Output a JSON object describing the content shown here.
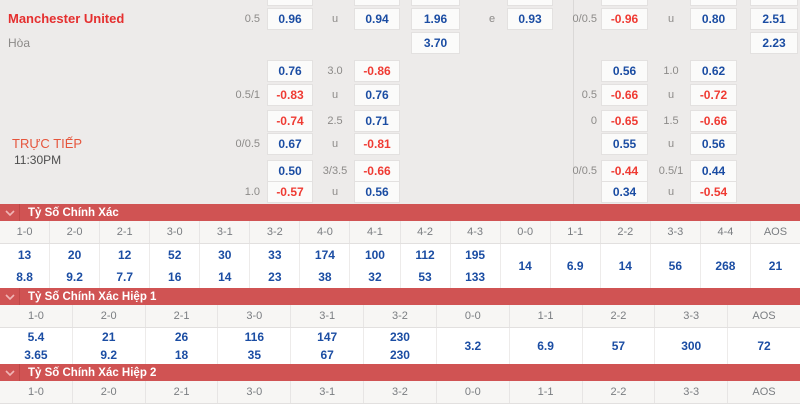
{
  "match": {
    "home_team": "Manchester United",
    "draw_label": "Hòa",
    "live_label": "TRỰC TIẾP",
    "kickoff_time": "11:30PM"
  },
  "colors": {
    "odds_positive": "#1b4da3",
    "odds_negative": "#ef3b33",
    "team_red": "#e52f2f",
    "section_bar_red": "#d05353",
    "panel_background": "#edebea"
  },
  "odds_cells": [
    {
      "row": 0,
      "col": "LB1",
      "type": "box",
      "text": "",
      "color": "blue"
    },
    {
      "row": 0,
      "col": "LB2",
      "type": "box",
      "text": "",
      "color": "blue"
    },
    {
      "row": 0,
      "col": "LB3",
      "type": "box",
      "text": "",
      "color": "blue"
    },
    {
      "row": 0,
      "col": "LB4",
      "type": "box",
      "text": "",
      "color": "blue"
    },
    {
      "row": 0,
      "col": "RB1",
      "type": "box",
      "text": "",
      "color": "blue"
    },
    {
      "row": 0,
      "col": "RB2",
      "type": "box",
      "text": "",
      "color": "blue"
    },
    {
      "row": 0,
      "col": "RB3",
      "type": "box",
      "text": "",
      "color": "blue"
    },
    {
      "row": 1,
      "col": "L1",
      "type": "label",
      "text": "0.5"
    },
    {
      "row": 1,
      "col": "LB1",
      "type": "box",
      "text": "0.96",
      "color": "blue"
    },
    {
      "row": 1,
      "col": "L2",
      "type": "label",
      "text": "u"
    },
    {
      "row": 1,
      "col": "LB2",
      "type": "box",
      "text": "0.94",
      "color": "blue"
    },
    {
      "row": 1,
      "col": "LB3",
      "type": "box",
      "text": "1.96",
      "color": "blue"
    },
    {
      "row": 1,
      "col": "L3",
      "type": "label",
      "text": "e"
    },
    {
      "row": 1,
      "col": "LB4",
      "type": "box",
      "text": "0.93",
      "color": "blue"
    },
    {
      "row": 1,
      "col": "R1",
      "type": "label",
      "text": "0/0.5"
    },
    {
      "row": 1,
      "col": "RB1",
      "type": "box",
      "text": "-0.96",
      "color": "red"
    },
    {
      "row": 1,
      "col": "R2",
      "type": "label",
      "text": "u"
    },
    {
      "row": 1,
      "col": "RB2",
      "type": "box",
      "text": "0.80",
      "color": "blue"
    },
    {
      "row": 1,
      "col": "RB3",
      "type": "box",
      "text": "2.51",
      "color": "blue"
    },
    {
      "row": 2,
      "col": "LB3",
      "type": "box",
      "text": "3.70",
      "color": "blue"
    },
    {
      "row": 2,
      "col": "RB3",
      "type": "box",
      "text": "2.23",
      "color": "blue"
    },
    {
      "row": 3,
      "col": "LB1",
      "type": "box",
      "text": "0.76",
      "color": "blue"
    },
    {
      "row": 3,
      "col": "L2",
      "type": "label",
      "text": "3.0"
    },
    {
      "row": 3,
      "col": "LB2",
      "type": "box",
      "text": "-0.86",
      "color": "red"
    },
    {
      "row": 3,
      "col": "RB1",
      "type": "box",
      "text": "0.56",
      "color": "blue"
    },
    {
      "row": 3,
      "col": "R2",
      "type": "label",
      "text": "1.0"
    },
    {
      "row": 3,
      "col": "RB2",
      "type": "box",
      "text": "0.62",
      "color": "blue"
    },
    {
      "row": 4,
      "col": "L1",
      "type": "label",
      "text": "0.5/1"
    },
    {
      "row": 4,
      "col": "LB1",
      "type": "box",
      "text": "-0.83",
      "color": "red"
    },
    {
      "row": 4,
      "col": "L2",
      "type": "label",
      "text": "u"
    },
    {
      "row": 4,
      "col": "LB2",
      "type": "box",
      "text": "0.76",
      "color": "blue"
    },
    {
      "row": 4,
      "col": "R1",
      "type": "label",
      "text": "0.5"
    },
    {
      "row": 4,
      "col": "RB1",
      "type": "box",
      "text": "-0.66",
      "color": "red"
    },
    {
      "row": 4,
      "col": "R2",
      "type": "label",
      "text": "u"
    },
    {
      "row": 4,
      "col": "RB2",
      "type": "box",
      "text": "-0.72",
      "color": "red"
    },
    {
      "row": 5,
      "col": "LB1",
      "type": "box",
      "text": "-0.74",
      "color": "red"
    },
    {
      "row": 5,
      "col": "L2",
      "type": "label",
      "text": "2.5"
    },
    {
      "row": 5,
      "col": "LB2",
      "type": "box",
      "text": "0.71",
      "color": "blue"
    },
    {
      "row": 5,
      "col": "R1",
      "type": "label",
      "text": "0"
    },
    {
      "row": 5,
      "col": "RB1",
      "type": "box",
      "text": "-0.65",
      "color": "red"
    },
    {
      "row": 5,
      "col": "R2",
      "type": "label",
      "text": "1.5"
    },
    {
      "row": 5,
      "col": "RB2",
      "type": "box",
      "text": "-0.66",
      "color": "red"
    },
    {
      "row": 6,
      "col": "L1",
      "type": "label",
      "text": "0/0.5"
    },
    {
      "row": 6,
      "col": "LB1",
      "type": "box",
      "text": "0.67",
      "color": "blue"
    },
    {
      "row": 6,
      "col": "L2",
      "type": "label",
      "text": "u"
    },
    {
      "row": 6,
      "col": "LB2",
      "type": "box",
      "text": "-0.81",
      "color": "red"
    },
    {
      "row": 6,
      "col": "RB1",
      "type": "box",
      "text": "0.55",
      "color": "blue"
    },
    {
      "row": 6,
      "col": "R2",
      "type": "label",
      "text": "u"
    },
    {
      "row": 6,
      "col": "RB2",
      "type": "box",
      "text": "0.56",
      "color": "blue"
    },
    {
      "row": 7,
      "col": "LB1",
      "type": "box",
      "text": "0.50",
      "color": "blue"
    },
    {
      "row": 7,
      "col": "L2",
      "type": "label",
      "text": "3/3.5"
    },
    {
      "row": 7,
      "col": "LB2",
      "type": "box",
      "text": "-0.66",
      "color": "red"
    },
    {
      "row": 7,
      "col": "R1",
      "type": "label",
      "text": "0/0.5"
    },
    {
      "row": 7,
      "col": "RB1",
      "type": "box",
      "text": "-0.44",
      "color": "red"
    },
    {
      "row": 7,
      "col": "R2",
      "type": "label",
      "text": "0.5/1"
    },
    {
      "row": 7,
      "col": "RB2",
      "type": "box",
      "text": "0.44",
      "color": "blue"
    },
    {
      "row": 8,
      "col": "L1",
      "type": "label",
      "text": "1.0"
    },
    {
      "row": 8,
      "col": "LB1",
      "type": "box",
      "text": "-0.57",
      "color": "red"
    },
    {
      "row": 8,
      "col": "L2",
      "type": "label",
      "text": "u"
    },
    {
      "row": 8,
      "col": "LB2",
      "type": "box",
      "text": "0.56",
      "color": "blue"
    },
    {
      "row": 8,
      "col": "RB1",
      "type": "box",
      "text": "0.34",
      "color": "blue"
    },
    {
      "row": 8,
      "col": "R2",
      "type": "label",
      "text": "u"
    },
    {
      "row": 8,
      "col": "RB2",
      "type": "box",
      "text": "-0.54",
      "color": "red"
    }
  ],
  "score_sections": [
    {
      "title": "Tỷ Số Chính Xác",
      "columns": [
        {
          "score": "1-0",
          "odds": [
            "13",
            "8.8"
          ]
        },
        {
          "score": "2-0",
          "odds": [
            "20",
            "9.2"
          ]
        },
        {
          "score": "2-1",
          "odds": [
            "12",
            "7.7"
          ]
        },
        {
          "score": "3-0",
          "odds": [
            "52",
            "16"
          ]
        },
        {
          "score": "3-1",
          "odds": [
            "30",
            "14"
          ]
        },
        {
          "score": "3-2",
          "odds": [
            "33",
            "23"
          ]
        },
        {
          "score": "4-0",
          "odds": [
            "174",
            "38"
          ]
        },
        {
          "score": "4-1",
          "odds": [
            "100",
            "32"
          ]
        },
        {
          "score": "4-2",
          "odds": [
            "112",
            "53"
          ]
        },
        {
          "score": "4-3",
          "odds": [
            "195",
            "133"
          ]
        },
        {
          "score": "0-0",
          "odds": [
            "14"
          ]
        },
        {
          "score": "1-1",
          "odds": [
            "6.9"
          ]
        },
        {
          "score": "2-2",
          "odds": [
            "14"
          ]
        },
        {
          "score": "3-3",
          "odds": [
            "56"
          ]
        },
        {
          "score": "4-4",
          "odds": [
            "268"
          ]
        },
        {
          "score": "AOS",
          "odds": [
            "21"
          ]
        }
      ]
    },
    {
      "title": "Tỷ Số Chính Xác Hiệp 1",
      "columns": [
        {
          "score": "1-0",
          "odds": [
            "5.4",
            "3.65"
          ]
        },
        {
          "score": "2-0",
          "odds": [
            "21",
            "9.2"
          ]
        },
        {
          "score": "2-1",
          "odds": [
            "26",
            "18"
          ]
        },
        {
          "score": "3-0",
          "odds": [
            "116",
            "35"
          ]
        },
        {
          "score": "3-1",
          "odds": [
            "147",
            "67"
          ]
        },
        {
          "score": "3-2",
          "odds": [
            "230",
            "230"
          ]
        },
        {
          "score": "0-0",
          "odds": [
            "3.2"
          ]
        },
        {
          "score": "1-1",
          "odds": [
            "6.9"
          ]
        },
        {
          "score": "2-2",
          "odds": [
            "57"
          ]
        },
        {
          "score": "3-3",
          "odds": [
            "300"
          ]
        },
        {
          "score": "AOS",
          "odds": [
            "72"
          ]
        }
      ]
    },
    {
      "title": "Tỷ Số Chính Xác Hiệp 2",
      "columns": [
        {
          "score": "1-0",
          "odds": []
        },
        {
          "score": "2-0",
          "odds": []
        },
        {
          "score": "2-1",
          "odds": []
        },
        {
          "score": "3-0",
          "odds": []
        },
        {
          "score": "3-1",
          "odds": []
        },
        {
          "score": "3-2",
          "odds": []
        },
        {
          "score": "0-0",
          "odds": []
        },
        {
          "score": "1-1",
          "odds": []
        },
        {
          "score": "2-2",
          "odds": []
        },
        {
          "score": "3-3",
          "odds": []
        },
        {
          "score": "AOS",
          "odds": []
        }
      ]
    }
  ]
}
